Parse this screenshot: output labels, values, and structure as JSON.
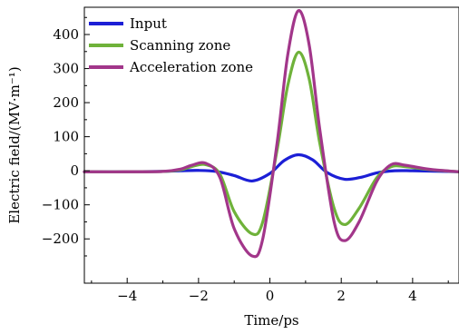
{
  "chart_data": {
    "type": "line",
    "xlabel": "Time/ps",
    "ylabel": "Electric field/(MV·m⁻¹)",
    "xlim": [
      -5.2,
      5.3
    ],
    "ylim": [
      -330,
      480
    ],
    "xticks": [
      -4,
      -2,
      0,
      2,
      4
    ],
    "xtick_labels": [
      "−4",
      "−2",
      "0",
      "2",
      "4"
    ],
    "yticks": [
      -200,
      -100,
      0,
      100,
      200,
      300,
      400
    ],
    "ytick_labels": [
      "−200",
      "−100",
      "0",
      "100",
      "200",
      "300",
      "400"
    ],
    "grid": false,
    "legend_position": "top-left",
    "series": [
      {
        "name": "Input",
        "color": "#1c1fd6",
        "x": [
          -5.2,
          -4.0,
          -3.0,
          -2.5,
          -2.0,
          -1.5,
          -1.0,
          -0.5,
          0.0,
          0.4,
          0.8,
          1.2,
          1.6,
          2.1,
          2.6,
          3.0,
          3.5,
          4.0,
          5.0,
          5.3
        ],
        "y": [
          -3,
          -3,
          -2,
          0,
          1,
          -2,
          -14,
          -30,
          -8,
          30,
          47,
          32,
          -5,
          -25,
          -18,
          -6,
          0,
          0,
          -2,
          -3
        ]
      },
      {
        "name": "Scanning zone",
        "color": "#6fb23a",
        "x": [
          -5.2,
          -4.0,
          -3.0,
          -2.5,
          -2.2,
          -1.8,
          -1.4,
          -1.0,
          -0.5,
          -0.2,
          0.2,
          0.5,
          0.8,
          1.1,
          1.4,
          1.8,
          2.1,
          2.5,
          3.0,
          3.4,
          3.8,
          4.5,
          5.3
        ],
        "y": [
          -3,
          -3,
          -2,
          3,
          12,
          18,
          -10,
          -120,
          -185,
          -150,
          60,
          250,
          348,
          270,
          80,
          -110,
          -158,
          -110,
          -20,
          12,
          12,
          3,
          -3
        ]
      },
      {
        "name": "Acceleration zone",
        "color": "#a2368a",
        "x": [
          -5.2,
          -4.0,
          -3.0,
          -2.5,
          -2.2,
          -1.8,
          -1.4,
          -1.0,
          -0.5,
          -0.2,
          0.2,
          0.5,
          0.8,
          1.1,
          1.4,
          1.8,
          2.1,
          2.5,
          3.0,
          3.4,
          3.8,
          4.5,
          5.3
        ],
        "y": [
          -3,
          -3,
          -2,
          5,
          16,
          22,
          -20,
          -170,
          -250,
          -200,
          80,
          340,
          470,
          370,
          120,
          -150,
          -205,
          -150,
          -30,
          18,
          16,
          4,
          -3
        ]
      }
    ]
  }
}
